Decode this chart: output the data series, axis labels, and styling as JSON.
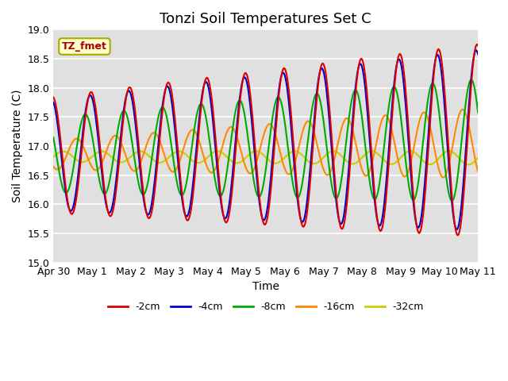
{
  "title": "Tonzi Soil Temperatures Set C",
  "xlabel": "Time",
  "ylabel": "Soil Temperature (C)",
  "ylim": [
    15.0,
    19.0
  ],
  "yticks": [
    15.0,
    15.5,
    16.0,
    16.5,
    17.0,
    17.5,
    18.0,
    18.5,
    19.0
  ],
  "xtick_labels": [
    "Apr 30",
    "May 1",
    "May 2",
    "May 3",
    "May 4",
    "May 5",
    "May 6",
    "May 7",
    "May 8",
    "May 9",
    "May 10",
    "May 11"
  ],
  "bg_color": "#e0e0e0",
  "grid_color": "white",
  "annotation_text": "TZ_fmet",
  "annotation_color": "#aa0000",
  "annotation_bg": "#ffffcc",
  "annotation_border": "#aaaa00",
  "colors": {
    "-2cm": "#dd0000",
    "-4cm": "#0000cc",
    "-8cm": "#00aa00",
    "-16cm": "#ff8800",
    "-32cm": "#cccc00"
  }
}
